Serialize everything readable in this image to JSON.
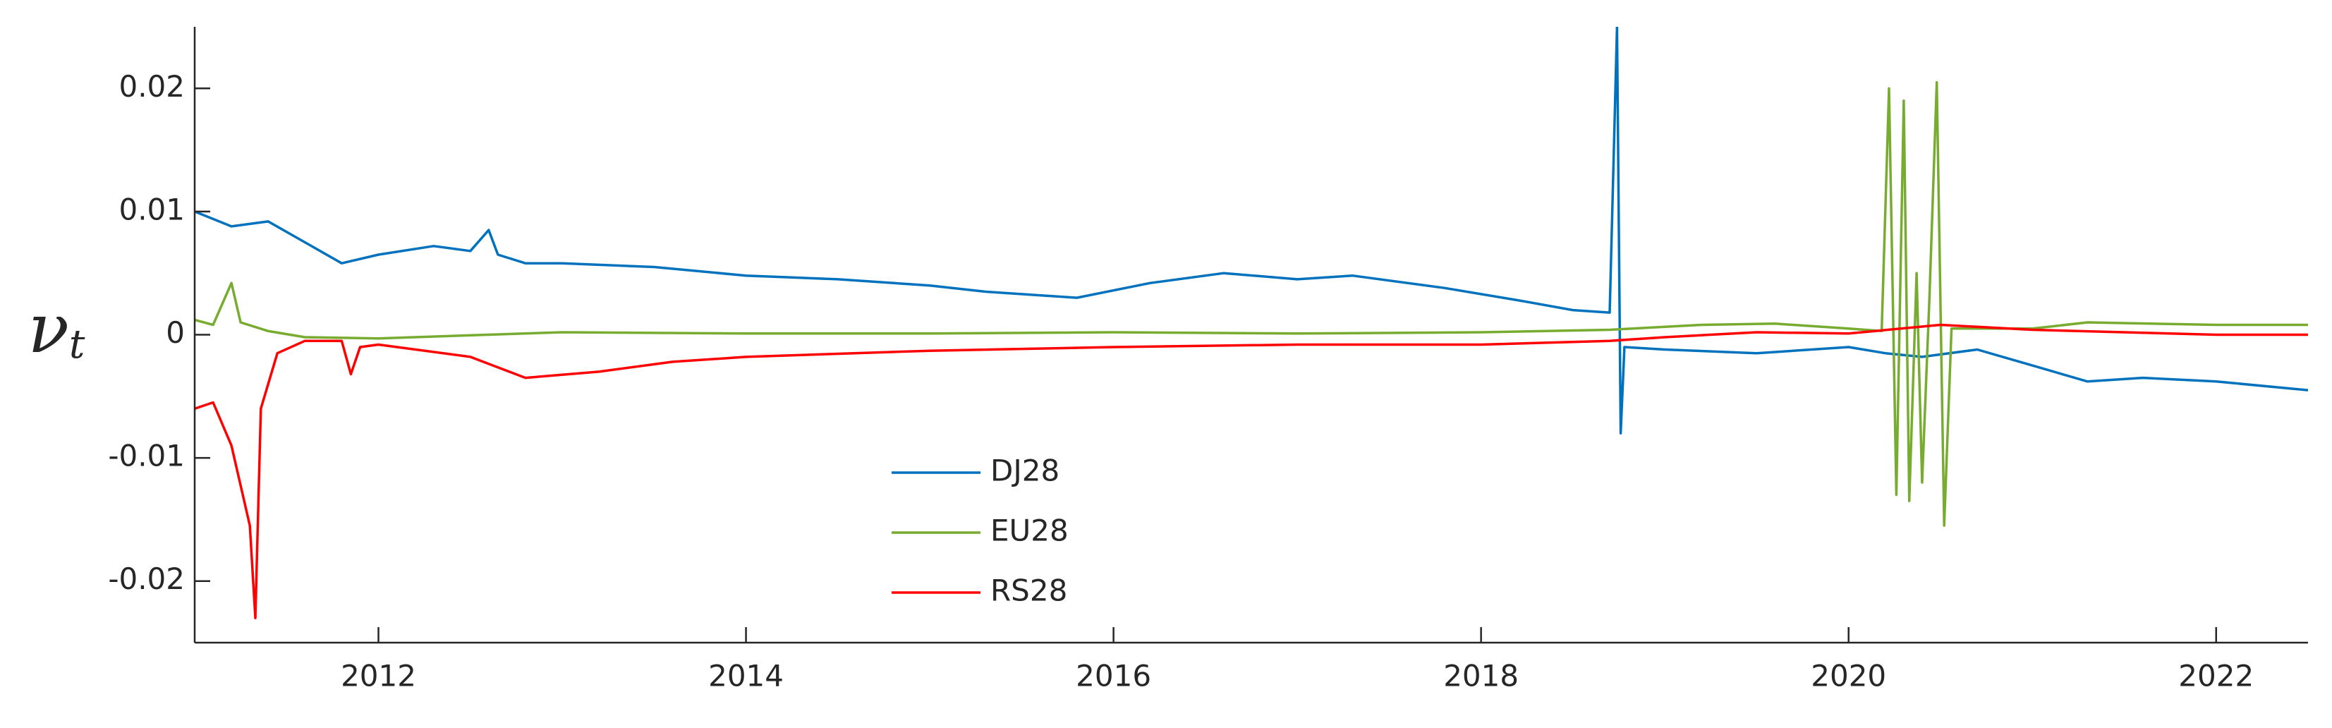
{
  "chart_data": {
    "type": "line",
    "ylabel": "ν",
    "ylabel_sub": "t",
    "xlim": [
      2011.0,
      2022.5
    ],
    "xticks": [
      2012,
      2014,
      2016,
      2018,
      2020,
      2022
    ],
    "ylim": [
      -0.025,
      0.025
    ],
    "yticks": [
      -0.02,
      -0.01,
      0,
      0.01,
      0.02
    ],
    "grid": false,
    "legend": "lower-center",
    "series": [
      {
        "name": "DJ28",
        "color": "#0072bd",
        "x": [
          2011.0,
          2011.2,
          2011.4,
          2011.6,
          2011.8,
          2012.0,
          2012.3,
          2012.5,
          2012.6,
          2012.65,
          2012.8,
          2013.0,
          2013.5,
          2014.0,
          2014.5,
          2015.0,
          2015.3,
          2015.8,
          2016.2,
          2016.6,
          2017.0,
          2017.3,
          2017.8,
          2018.2,
          2018.5,
          2018.7,
          2018.74,
          2018.76,
          2018.78,
          2019.0,
          2019.5,
          2020.0,
          2020.2,
          2020.4,
          2020.7,
          2021.0,
          2021.3,
          2021.6,
          2022.0,
          2022.5
        ],
        "values": [
          0.01,
          0.0088,
          0.0092,
          0.0075,
          0.0058,
          0.0065,
          0.0072,
          0.0068,
          0.0085,
          0.0065,
          0.0058,
          0.0058,
          0.0055,
          0.0048,
          0.0045,
          0.004,
          0.0035,
          0.003,
          0.0042,
          0.005,
          0.0045,
          0.0048,
          0.0038,
          0.0028,
          0.002,
          0.0018,
          0.025,
          -0.008,
          -0.001,
          -0.0012,
          -0.0015,
          -0.001,
          -0.0015,
          -0.0018,
          -0.0012,
          -0.0025,
          -0.0038,
          -0.0035,
          -0.0038,
          -0.0045
        ]
      },
      {
        "name": "EU28",
        "color": "#77ac30",
        "x": [
          2011.0,
          2011.1,
          2011.2,
          2011.25,
          2011.4,
          2011.6,
          2012.0,
          2013.0,
          2014.0,
          2015.0,
          2016.0,
          2017.0,
          2018.0,
          2018.7,
          2019.2,
          2019.6,
          2020.0,
          2020.18,
          2020.22,
          2020.26,
          2020.3,
          2020.33,
          2020.37,
          2020.4,
          2020.44,
          2020.48,
          2020.52,
          2020.56,
          2021.0,
          2021.3,
          2022.0,
          2022.5
        ],
        "values": [
          0.0012,
          0.0008,
          0.0042,
          0.001,
          0.0003,
          -0.0002,
          -0.0003,
          0.0002,
          0.0001,
          0.0001,
          0.0002,
          0.0001,
          0.0002,
          0.0004,
          0.0008,
          0.0009,
          0.0005,
          0.0003,
          0.02,
          -0.013,
          0.019,
          -0.0135,
          0.005,
          -0.012,
          0.003,
          0.0205,
          -0.0155,
          0.0005,
          0.0005,
          0.001,
          0.0008,
          0.0008
        ]
      },
      {
        "name": "RS28",
        "color": "#ff0000",
        "x": [
          2011.0,
          2011.1,
          2011.2,
          2011.3,
          2011.33,
          2011.36,
          2011.45,
          2011.6,
          2011.8,
          2011.85,
          2011.9,
          2012.0,
          2012.5,
          2012.8,
          2013.2,
          2013.6,
          2014.0,
          2015.0,
          2016.0,
          2017.0,
          2018.0,
          2018.7,
          2019.0,
          2019.5,
          2020.0,
          2020.5,
          2021.0,
          2022.0,
          2022.5
        ],
        "values": [
          -0.006,
          -0.0055,
          -0.009,
          -0.0155,
          -0.023,
          -0.006,
          -0.0015,
          -0.0005,
          -0.0005,
          -0.0032,
          -0.001,
          -0.0008,
          -0.0018,
          -0.0035,
          -0.003,
          -0.0022,
          -0.0018,
          -0.0013,
          -0.001,
          -0.0008,
          -0.0008,
          -0.0005,
          -0.0002,
          0.0002,
          0.0001,
          0.0008,
          0.0004,
          0.0,
          0.0
        ]
      }
    ]
  }
}
